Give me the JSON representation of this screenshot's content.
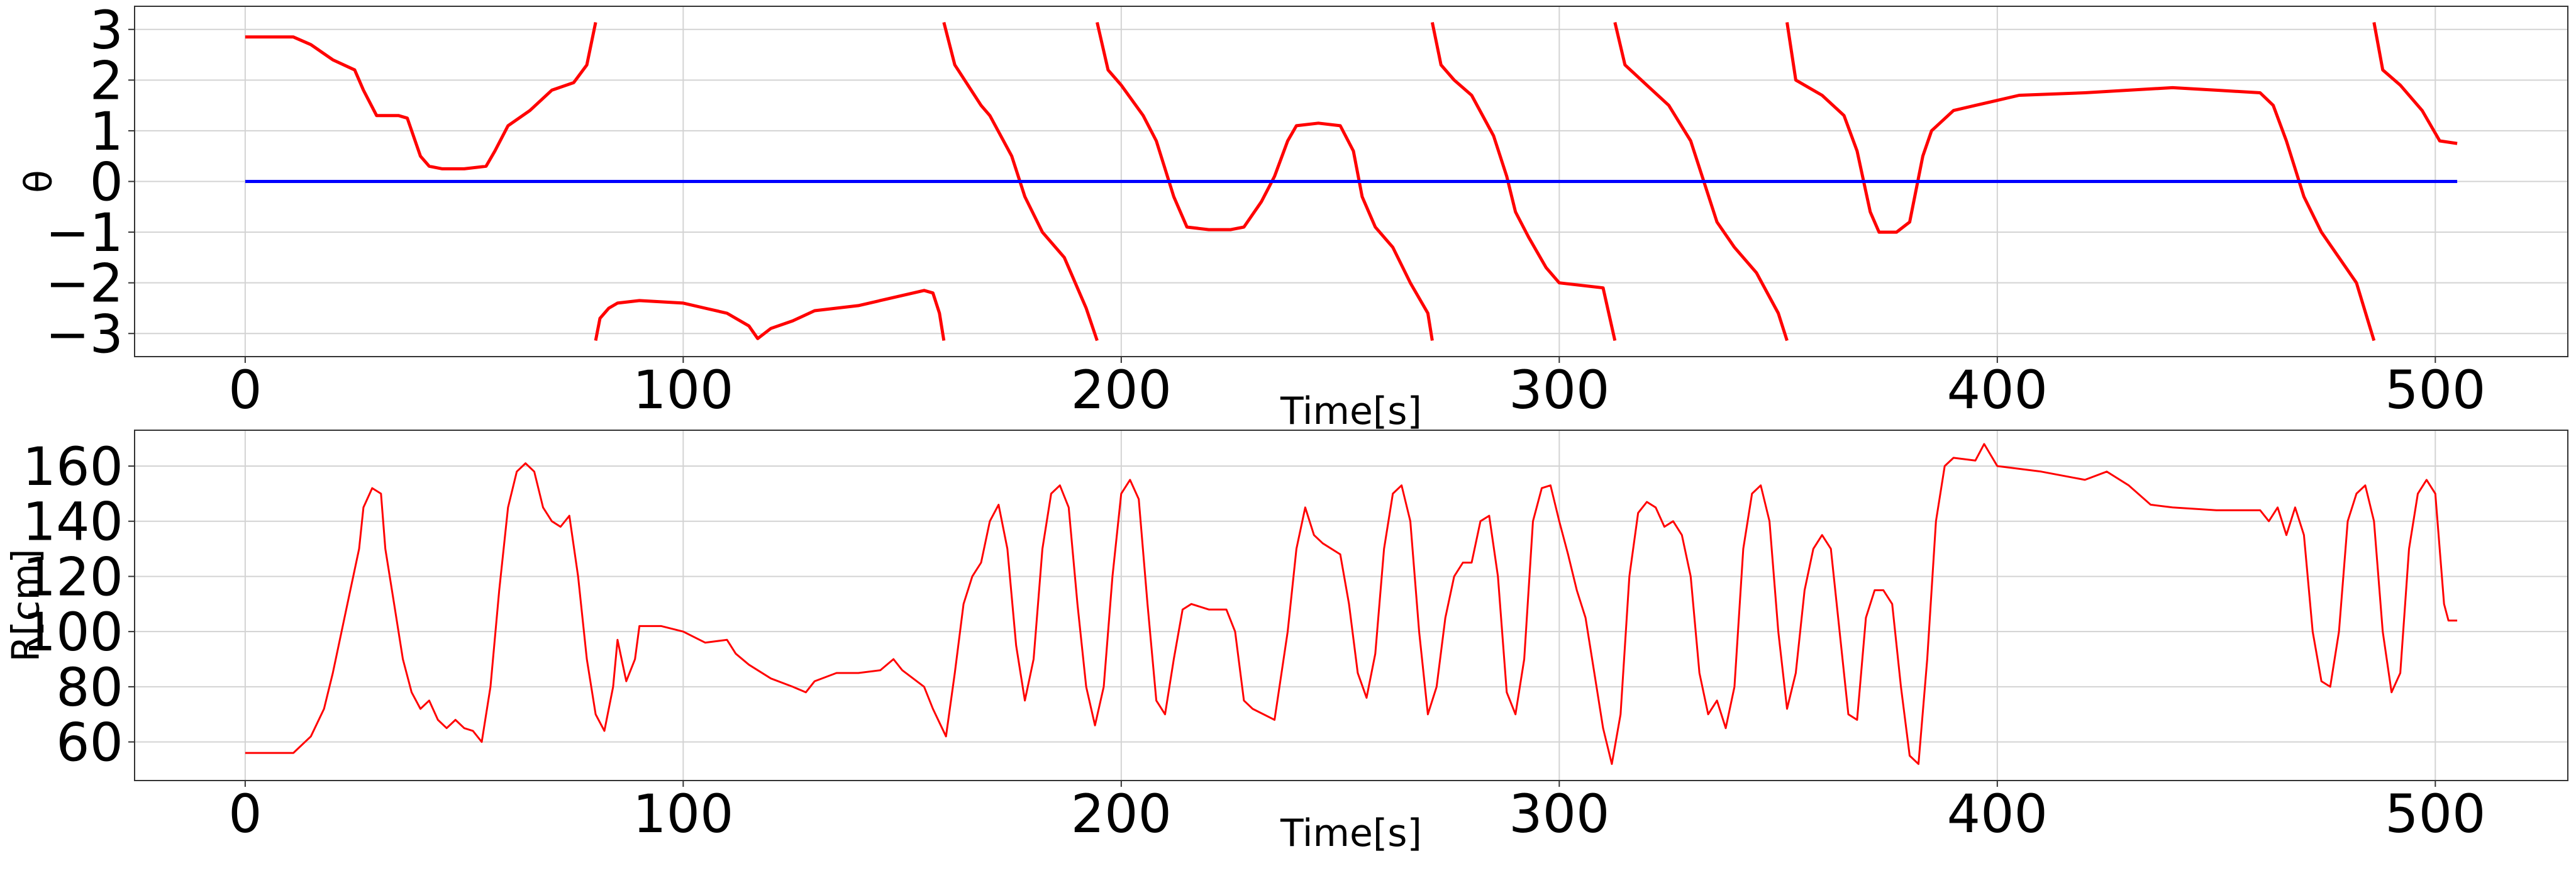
{
  "chart_data": [
    {
      "type": "line",
      "xlabel": "Time[s]",
      "ylabel": "θ",
      "xlim": [
        -25.25,
        530.25
      ],
      "ylim": [
        -3.456,
        3.456
      ],
      "xticks": [
        0,
        100,
        200,
        300,
        400,
        500
      ],
      "yticks": [
        {
          "value": -3,
          "label": "−3"
        },
        {
          "value": -2,
          "label": "−2"
        },
        {
          "value": -1,
          "label": "−1"
        },
        0,
        1,
        2,
        3
      ],
      "grid": true,
      "series": [
        {
          "color": "#ff0000",
          "x": [
            0,
            11,
            15,
            20,
            25,
            27,
            30,
            35,
            37,
            40,
            42,
            45,
            50,
            55,
            57,
            60,
            65,
            70,
            75,
            78,
            80,
            80,
            80,
            81,
            83,
            85,
            90,
            100,
            105,
            110,
            115,
            117,
            120,
            125,
            130,
            140,
            150,
            155,
            157,
            158.5,
            159.5,
            159.5,
            159.5,
            162,
            165,
            168,
            170,
            175,
            178,
            182,
            187,
            192,
            194.5,
            194.5,
            194.5,
            197,
            200,
            205,
            208,
            212,
            215,
            220,
            225,
            228,
            232,
            235,
            238,
            240,
            245,
            250,
            253,
            255,
            258,
            262,
            266,
            270,
            271,
            271,
            271,
            273,
            276,
            280,
            285,
            288,
            290,
            293,
            297,
            300,
            305,
            310,
            312.7,
            312.7,
            312.7,
            315,
            320,
            325,
            330,
            333,
            336,
            340,
            345,
            350,
            352,
            352,
            352,
            354,
            360,
            365,
            368,
            371,
            373,
            377,
            380,
            383,
            385,
            390,
            395,
            400,
            405,
            420,
            430,
            440,
            450,
            460,
            463,
            466,
            470,
            474,
            478,
            482,
            486,
            486,
            486,
            488,
            492,
            497,
            501,
            505
          ],
          "values": [
            2.85,
            2.85,
            2.7,
            2.4,
            2.2,
            1.8,
            1.3,
            1.3,
            1.25,
            0.5,
            0.3,
            0.25,
            0.25,
            0.3,
            0.6,
            1.1,
            1.4,
            1.8,
            1.95,
            2.3,
            3.14,
            null,
            -3.14,
            -2.7,
            -2.5,
            -2.4,
            -2.35,
            -2.4,
            -2.5,
            -2.6,
            -2.85,
            -3.1,
            -2.9,
            -2.75,
            -2.55,
            -2.45,
            -2.25,
            -2.15,
            -2.2,
            -2.6,
            -3.14,
            null,
            3.14,
            2.3,
            1.9,
            1.5,
            1.3,
            0.5,
            -0.3,
            -1.0,
            -1.5,
            -2.5,
            -3.14,
            null,
            3.14,
            2.2,
            1.9,
            1.3,
            0.8,
            -0.3,
            -0.9,
            -0.95,
            -0.95,
            -0.9,
            -0.4,
            0.1,
            0.8,
            1.1,
            1.15,
            1.1,
            0.6,
            -0.3,
            -0.9,
            -1.3,
            -2.0,
            -2.6,
            -3.14,
            null,
            3.14,
            2.3,
            2.0,
            1.7,
            0.9,
            0.1,
            -0.6,
            -1.1,
            -1.7,
            -2.0,
            -2.05,
            -2.1,
            -3.14,
            null,
            3.14,
            2.3,
            1.9,
            1.5,
            0.8,
            0.0,
            -0.8,
            -1.3,
            -1.8,
            -2.6,
            -3.14,
            null,
            3.14,
            2.0,
            1.7,
            1.3,
            0.6,
            -0.6,
            -1.0,
            -1.0,
            -0.8,
            0.5,
            1.0,
            1.4,
            1.5,
            1.6,
            1.7,
            1.75,
            1.8,
            1.85,
            1.8,
            1.75,
            1.5,
            0.8,
            -0.3,
            -1.0,
            -1.5,
            -2.0,
            -3.14,
            null,
            3.14,
            2.2,
            1.9,
            1.4,
            0.8,
            0.75
          ]
        },
        {
          "color": "#0000ff",
          "x": [
            0,
            505
          ],
          "values": [
            0,
            0
          ]
        }
      ]
    },
    {
      "type": "line",
      "xlabel": "Time[s]",
      "ylabel": "R[cm]",
      "xlim": [
        -25.25,
        530.25
      ],
      "ylim": [
        46,
        173
      ],
      "xticks": [
        0,
        100,
        200,
        300,
        400,
        500
      ],
      "yticks": [
        60,
        80,
        100,
        120,
        140,
        160
      ],
      "grid": true,
      "series": [
        {
          "color": "#ff0000",
          "x": [
            0,
            11,
            15,
            18,
            20,
            22,
            24,
            26,
            27,
            29,
            31,
            32,
            34,
            36,
            38,
            40,
            42,
            44,
            46,
            48,
            50,
            52,
            54,
            56,
            58,
            60,
            62,
            64,
            66,
            68,
            70,
            72,
            74,
            76,
            78,
            80,
            82,
            84,
            85,
            87,
            89,
            90,
            95,
            100,
            105,
            110,
            112,
            115,
            120,
            125,
            128,
            130,
            135,
            140,
            145,
            148,
            150,
            155,
            157,
            160,
            162,
            164,
            166,
            168,
            170,
            172,
            174,
            176,
            178,
            180,
            182,
            184,
            186,
            188,
            190,
            192,
            194,
            196,
            198,
            200,
            202,
            204,
            206,
            208,
            210,
            212,
            214,
            216,
            220,
            224,
            226,
            228,
            230,
            235,
            238,
            240,
            242,
            244,
            246,
            250,
            252,
            254,
            256,
            258,
            260,
            262,
            264,
            266,
            268,
            270,
            272,
            274,
            276,
            278,
            280,
            282,
            284,
            286,
            288,
            290,
            292,
            294,
            296,
            298,
            300,
            302,
            304,
            306,
            308,
            310,
            312,
            314,
            316,
            318,
            320,
            322,
            324,
            326,
            328,
            330,
            332,
            334,
            336,
            338,
            340,
            342,
            344,
            346,
            348,
            350,
            352,
            354,
            356,
            358,
            360,
            362,
            364,
            366,
            368,
            370,
            372,
            374,
            376,
            378,
            380,
            382,
            384,
            386,
            388,
            390,
            395,
            397,
            400,
            410,
            420,
            425,
            430,
            435,
            440,
            450,
            460,
            462,
            464,
            466,
            468,
            470,
            472,
            474,
            476,
            478,
            480,
            482,
            484,
            486,
            488,
            490,
            492,
            494,
            496,
            498,
            500,
            502,
            503,
            505
          ],
          "values": [
            56,
            56,
            62,
            72,
            85,
            100,
            115,
            130,
            145,
            152,
            150,
            130,
            110,
            90,
            78,
            72,
            75,
            68,
            65,
            68,
            65,
            64,
            60,
            80,
            115,
            145,
            158,
            161,
            158,
            145,
            140,
            138,
            142,
            120,
            90,
            70,
            64,
            80,
            97,
            82,
            90,
            102,
            102,
            100,
            96,
            97,
            92,
            88,
            83,
            80,
            78,
            82,
            85,
            85,
            86,
            90,
            86,
            80,
            72,
            62,
            85,
            110,
            120,
            125,
            140,
            146,
            130,
            95,
            75,
            90,
            130,
            150,
            153,
            145,
            110,
            80,
            66,
            80,
            120,
            150,
            155,
            148,
            110,
            75,
            70,
            90,
            108,
            110,
            108,
            108,
            100,
            75,
            72,
            68,
            100,
            130,
            145,
            135,
            132,
            128,
            110,
            85,
            76,
            92,
            130,
            150,
            153,
            140,
            100,
            70,
            80,
            105,
            120,
            125,
            125,
            140,
            142,
            120,
            78,
            70,
            90,
            140,
            152,
            153,
            140,
            128,
            115,
            105,
            85,
            65,
            52,
            70,
            120,
            143,
            147,
            145,
            138,
            140,
            135,
            120,
            85,
            70,
            75,
            65,
            80,
            130,
            150,
            153,
            140,
            100,
            72,
            85,
            115,
            130,
            135,
            130,
            100,
            70,
            68,
            105,
            115,
            115,
            110,
            80,
            55,
            52,
            90,
            140,
            160,
            163,
            162,
            168,
            160,
            158,
            155,
            158,
            153,
            146,
            145,
            144,
            144,
            140,
            145,
            135,
            145,
            135,
            100,
            82,
            80,
            100,
            140,
            150,
            153,
            140,
            100,
            78,
            85,
            130,
            150,
            155,
            150,
            110,
            104,
            104
          ]
        }
      ]
    }
  ]
}
